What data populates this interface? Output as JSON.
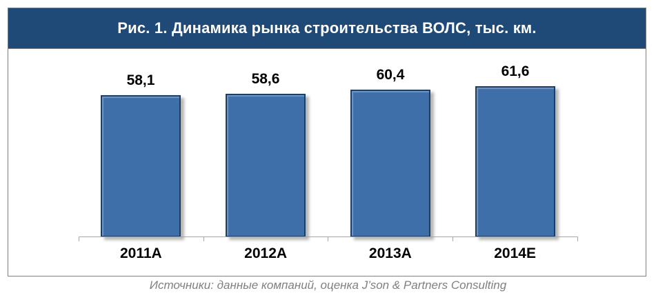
{
  "colors": {
    "title_bg": "#1F4977",
    "title_text": "#FFFFFF",
    "bar_fill": "#3E6FA8",
    "bar_border": "#1C3D66",
    "axis_line": "#A6A6A6",
    "figure_border": "#7F7F7F",
    "data_label_text": "#000000",
    "source_text": "#808080"
  },
  "chart_data": {
    "type": "bar",
    "title": "Рис. 1. Динамика рынка строительства ВОЛС, тыс. км.",
    "categories": [
      "2011A",
      "2012A",
      "2013A",
      "2014E"
    ],
    "values": [
      58.1,
      58.6,
      60.4,
      61.6
    ],
    "display_values": [
      "58,1",
      "58,6",
      "60,4",
      "61,6"
    ],
    "ylabel": "тыс. км",
    "ylim": [
      0,
      70
    ],
    "grid": false,
    "legend": false,
    "data_labels_position": "above bars",
    "source": "Источники: данные компаний, оценка J’son & Partners Consulting"
  }
}
